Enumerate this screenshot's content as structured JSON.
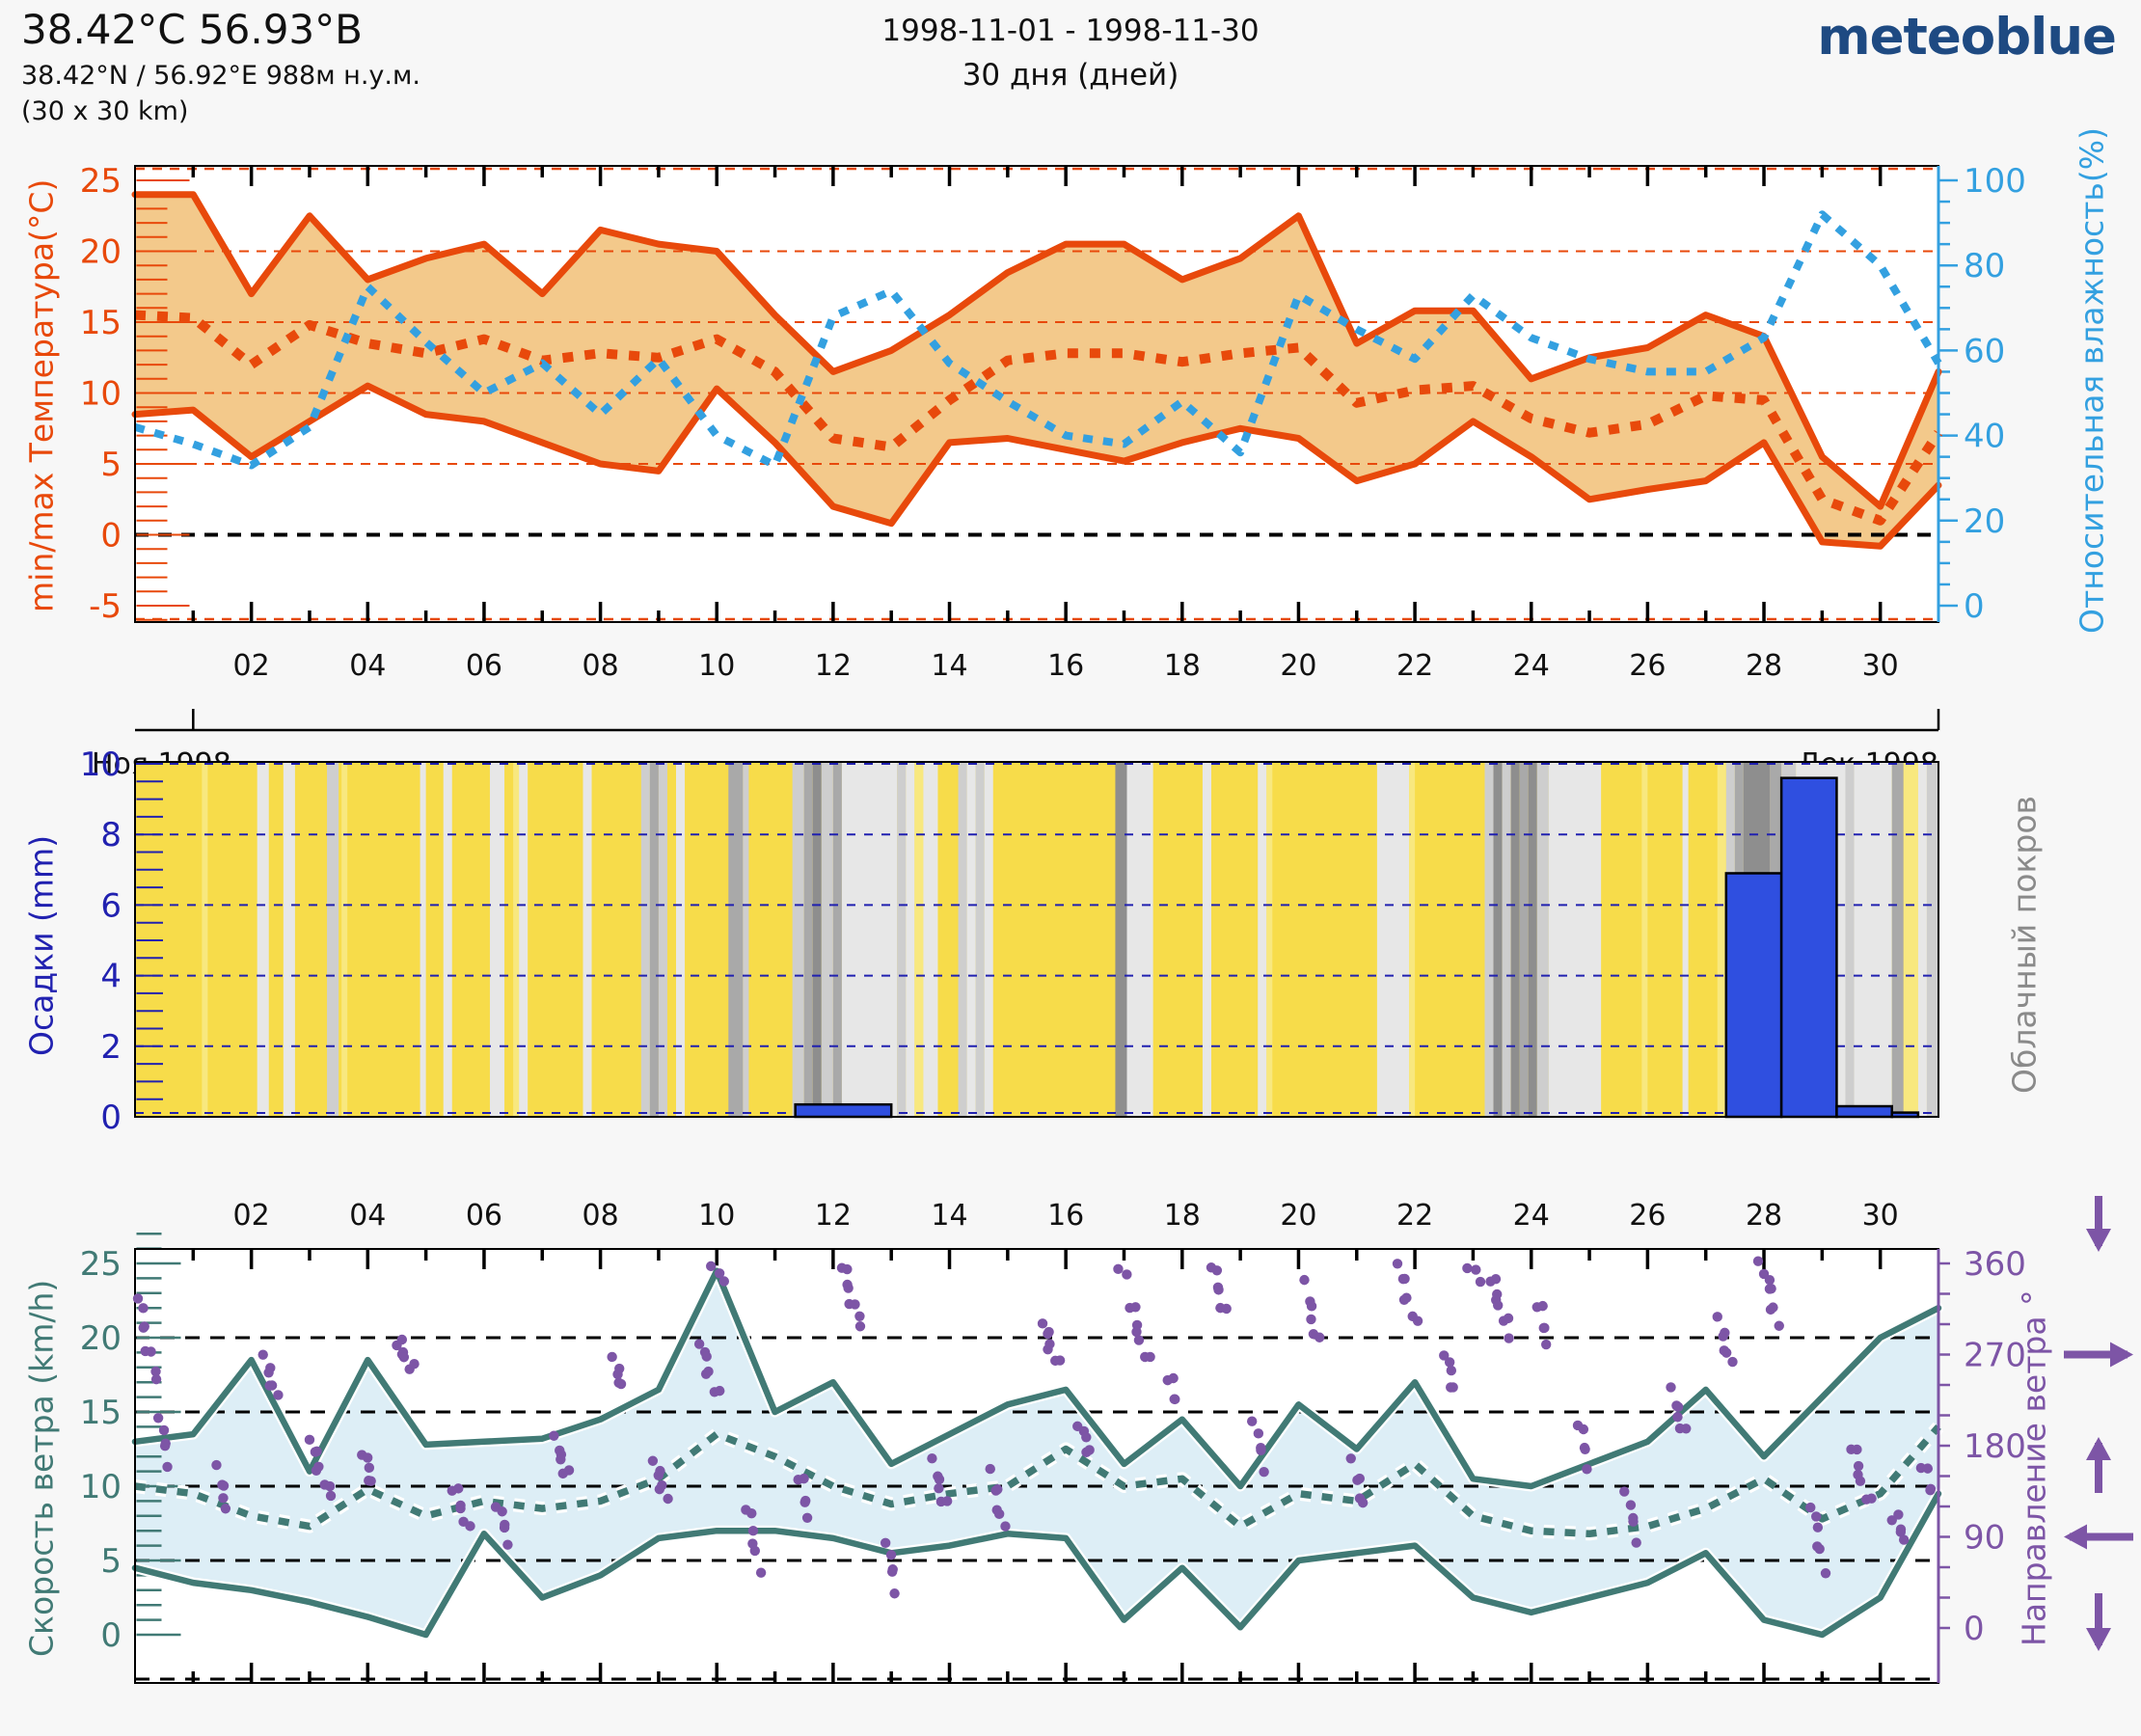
{
  "header": {
    "title": "38.42°C 56.93°B",
    "subtitle": "38.42°N / 56.92°E   988м н.у.м.",
    "area": "(30 x 30 km)",
    "period": "1998-11-01 - 1998-11-30",
    "duration": "30 дня (дней)",
    "logo": "meteoblue"
  },
  "colors": {
    "background": "#f7f7f7",
    "temperature_line": "#e8490b",
    "temperature_band": "#f3c98b",
    "humidity_line": "#33a0e0",
    "precip_bar": "#2f4fe0",
    "precip_axis": "#2121b0",
    "cloud_label": "#8a8a8a",
    "cloud_base_yellow": "#f7dc4a",
    "wind_line": "#417a75",
    "wind_band": "#ddeef6",
    "direction_purple": "#7d55a6",
    "logo_blue": "#1e4a82",
    "zero_line": "#000000"
  },
  "axes": {
    "temperature": {
      "label": "min/max Температура(°C)",
      "tick_labels": [
        "25",
        "20",
        "15",
        "10",
        "5",
        "0",
        "-5"
      ],
      "tick_values": [
        25,
        20,
        15,
        10,
        5,
        0,
        -5
      ]
    },
    "humidity": {
      "label": "Относительная влажность(%)",
      "tick_labels": [
        "100",
        "80",
        "60",
        "40",
        "20",
        "0"
      ],
      "tick_values": [
        100,
        80,
        60,
        40,
        20,
        0
      ]
    },
    "precipitation": {
      "label": "Осадки (mm)",
      "tick_labels": [
        "10",
        "8",
        "6",
        "4",
        "2",
        "0"
      ],
      "tick_values": [
        10,
        8,
        6,
        4,
        2,
        0
      ]
    },
    "cloud": {
      "label": "Облачный покров"
    },
    "wind": {
      "label": "Скорость ветра (km/h)",
      "tick_labels": [
        "25",
        "20",
        "15",
        "10",
        "5",
        "0"
      ],
      "tick_values": [
        25,
        20,
        15,
        10,
        5,
        0
      ]
    },
    "direction": {
      "label": "Направление ветра °",
      "tick_labels": [
        "360",
        "270",
        "180",
        "90",
        "0"
      ],
      "tick_values": [
        360,
        270,
        180,
        90,
        0
      ]
    },
    "days": {
      "tick_labels": [
        "02",
        "04",
        "06",
        "08",
        "10",
        "12",
        "14",
        "16",
        "18",
        "20",
        "22",
        "24",
        "26",
        "28",
        "30"
      ],
      "tick_values": [
        2,
        4,
        6,
        8,
        10,
        12,
        14,
        16,
        18,
        20,
        22,
        24,
        26,
        28,
        30
      ]
    },
    "months": {
      "left": "Ноя 1998",
      "right": "Дек 1998"
    }
  },
  "chart_data": [
    {
      "type": "area",
      "name": "temperature-humidity",
      "x_days": [
        0,
        1,
        2,
        3,
        4,
        5,
        6,
        7,
        8,
        9,
        10,
        11,
        12,
        13,
        14,
        15,
        16,
        17,
        18,
        19,
        20,
        21,
        22,
        23,
        24,
        25,
        26,
        27,
        28,
        29,
        30,
        31
      ],
      "series": [
        {
          "name": "temp_max",
          "values": [
            24,
            24,
            17,
            22.5,
            18,
            19.5,
            20.5,
            17,
            21.5,
            20.5,
            20,
            15.5,
            11.5,
            13,
            15.5,
            18.5,
            20.5,
            20.5,
            18,
            19.5,
            22.5,
            13.5,
            15.8,
            15.8,
            11,
            12.5,
            13.2,
            15.5,
            14,
            5.5,
            2,
            11.5
          ]
        },
        {
          "name": "temp_min",
          "values": [
            8.5,
            8.8,
            5.5,
            8,
            10.5,
            8.5,
            8,
            6.5,
            5,
            4.5,
            10.3,
            6.5,
            2,
            0.8,
            6.5,
            6.8,
            6,
            5.2,
            6.5,
            7.5,
            6.8,
            3.8,
            5,
            8,
            5.5,
            2.5,
            3.2,
            3.8,
            6.5,
            -0.5,
            -0.8,
            3.5
          ]
        },
        {
          "name": "temp_mean",
          "values": [
            15.5,
            15.3,
            12,
            14.8,
            13.5,
            12.8,
            13.8,
            12.3,
            12.8,
            12.5,
            13.8,
            11.5,
            6.8,
            6.2,
            9.5,
            12.3,
            12.8,
            12.8,
            12.2,
            12.8,
            13.2,
            9.3,
            10.2,
            10.5,
            8.2,
            7.2,
            7.8,
            9.8,
            9.5,
            2.5,
            1,
            7.2
          ]
        },
        {
          "name": "humidity_pct",
          "values": [
            42,
            38,
            33,
            42,
            75,
            62,
            50,
            57,
            45,
            58,
            40,
            33,
            68,
            74,
            57,
            48,
            40,
            38,
            48,
            36,
            73,
            65,
            58,
            73,
            63,
            58,
            55,
            55,
            63,
            92,
            80,
            57
          ]
        }
      ],
      "ylim_temp": [
        -5,
        25
      ],
      "ylim_humidity": [
        0,
        100
      ],
      "temp_gridlines": [
        20,
        15,
        10,
        5
      ],
      "zero_line": 0
    },
    {
      "type": "bar",
      "name": "precipitation-cloudcover",
      "ylim_mm": [
        0,
        10
      ],
      "bars_day_start_end_mm": [
        [
          11.35,
          13.0,
          0.35
        ],
        [
          27.35,
          28.3,
          6.9
        ],
        [
          28.3,
          29.25,
          9.6
        ],
        [
          29.25,
          30.2,
          0.3
        ],
        [
          30.2,
          30.65,
          0.12
        ]
      ],
      "cloud_stripes_day_start_end_color": [
        [
          1.15,
          1.25,
          "#f8e87f"
        ],
        [
          2.1,
          2.3,
          "#e7e7e7"
        ],
        [
          2.55,
          2.75,
          "#e7e7e7"
        ],
        [
          3.3,
          3.5,
          "#cecece"
        ],
        [
          3.55,
          3.65,
          "#f8e87f"
        ],
        [
          4.9,
          5.0,
          "#e7e7e7"
        ],
        [
          5.3,
          5.45,
          "#e7e7e7"
        ],
        [
          6.1,
          6.35,
          "#e7e7e7"
        ],
        [
          6.5,
          6.6,
          "#f8e87f"
        ],
        [
          6.6,
          6.75,
          "#e7e7e7"
        ],
        [
          7.7,
          7.85,
          "#e7e7e7"
        ],
        [
          8.7,
          8.85,
          "#cecece"
        ],
        [
          8.85,
          9.0,
          "#a9a9a9"
        ],
        [
          9.0,
          9.15,
          "#cecece"
        ],
        [
          9.3,
          9.45,
          "#e7e7e7"
        ],
        [
          10.2,
          10.45,
          "#a9a9a9"
        ],
        [
          10.45,
          10.55,
          "#cecece"
        ],
        [
          11.3,
          11.5,
          "#cecece"
        ],
        [
          11.5,
          11.65,
          "#a9a9a9"
        ],
        [
          11.65,
          11.8,
          "#8e8e8e"
        ],
        [
          11.8,
          12.0,
          "#cecece"
        ],
        [
          12.0,
          12.15,
          "#a9a9a9"
        ],
        [
          12.15,
          13.1,
          "#e7e7e7"
        ],
        [
          13.1,
          13.25,
          "#cecece"
        ],
        [
          13.25,
          13.4,
          "#e7e7e7"
        ],
        [
          13.4,
          13.55,
          "#f8e87f"
        ],
        [
          13.55,
          13.8,
          "#e7e7e7"
        ],
        [
          14.15,
          14.3,
          "#cecece"
        ],
        [
          14.3,
          14.45,
          "#e7e7e7"
        ],
        [
          14.45,
          14.6,
          "#cecece"
        ],
        [
          14.6,
          14.75,
          "#e7e7e7"
        ],
        [
          16.85,
          17.05,
          "#8e8e8e"
        ],
        [
          17.05,
          17.5,
          "#e7e7e7"
        ],
        [
          18.35,
          18.5,
          "#e7e7e7"
        ],
        [
          19.3,
          19.45,
          "#e7e7e7"
        ],
        [
          19.45,
          19.55,
          "#f8e87f"
        ],
        [
          21.35,
          21.9,
          "#e7e7e7"
        ],
        [
          21.9,
          22.0,
          "#f8e87f"
        ],
        [
          23.2,
          23.35,
          "#cecece"
        ],
        [
          23.35,
          23.5,
          "#8e8e8e"
        ],
        [
          23.5,
          23.65,
          "#cecece"
        ],
        [
          23.65,
          23.8,
          "#8e8e8e"
        ],
        [
          23.8,
          23.95,
          "#a9a9a9"
        ],
        [
          23.95,
          24.1,
          "#8e8e8e"
        ],
        [
          24.1,
          24.3,
          "#cecece"
        ],
        [
          24.3,
          25.2,
          "#e7e7e7"
        ],
        [
          25.9,
          26.0,
          "#f8e87f"
        ],
        [
          26.6,
          26.7,
          "#e7e7e7"
        ],
        [
          27.2,
          27.35,
          "#f8e87f"
        ],
        [
          27.35,
          27.5,
          "#cecece"
        ],
        [
          27.5,
          27.65,
          "#a9a9a9"
        ],
        [
          27.65,
          28.1,
          "#8e8e8e"
        ],
        [
          28.1,
          28.3,
          "#a9a9a9"
        ],
        [
          28.3,
          28.55,
          "#cecece"
        ],
        [
          28.55,
          29.4,
          "#e7e7e7"
        ],
        [
          29.4,
          29.55,
          "#cecece"
        ],
        [
          29.55,
          30.2,
          "#e7e7e7"
        ],
        [
          30.2,
          30.4,
          "#a9a9a9"
        ],
        [
          30.4,
          30.65,
          "#f8e87f"
        ],
        [
          30.65,
          30.8,
          "#e7e7e7"
        ],
        [
          30.8,
          31,
          "#cecece"
        ]
      ]
    },
    {
      "type": "line-scatter",
      "name": "wind-speed-direction",
      "x_days": [
        0,
        1,
        2,
        3,
        4,
        5,
        6,
        7,
        8,
        9,
        10,
        11,
        12,
        13,
        14,
        15,
        16,
        17,
        18,
        19,
        20,
        21,
        22,
        23,
        24,
        25,
        26,
        27,
        28,
        29,
        30,
        31
      ],
      "series": [
        {
          "name": "wind_max",
          "values": [
            13,
            13.5,
            18.5,
            11,
            18.5,
            12.8,
            13,
            13.2,
            14.5,
            16.5,
            24.5,
            15,
            17,
            11.5,
            13.5,
            15.5,
            16.5,
            11.5,
            14.5,
            10,
            15.5,
            12.5,
            17,
            10.5,
            10,
            11.5,
            13,
            16.5,
            12,
            16,
            20,
            22
          ]
        },
        {
          "name": "wind_mean",
          "values": [
            10,
            9.5,
            8,
            7.3,
            9.8,
            8,
            9,
            8.5,
            9,
            10.5,
            13.5,
            12,
            10,
            8.8,
            9.5,
            10,
            12.5,
            10,
            10.5,
            7.3,
            9.5,
            9,
            11.5,
            8,
            7,
            6.8,
            7.3,
            8.5,
            10.5,
            7.8,
            9.5,
            14
          ]
        },
        {
          "name": "wind_min",
          "values": [
            4.5,
            3.5,
            3,
            2.2,
            1.2,
            0,
            6.8,
            2.5,
            4,
            6.5,
            7,
            7,
            6.5,
            5.5,
            6,
            6.8,
            6.5,
            1,
            4.5,
            0.5,
            5,
            5.5,
            6,
            2.5,
            1.5,
            2.5,
            3.5,
            5.5,
            1,
            0,
            2.5,
            9.5
          ]
        }
      ],
      "ylim_speed": [
        0,
        25
      ],
      "ylim_direction": [
        0,
        360
      ],
      "speed_gridlines": [
        20,
        15,
        10,
        5,
        0
      ],
      "direction_runs_day0_day1_deg0_deg1_n": [
        [
          0.05,
          0.35,
          325,
          245,
          8
        ],
        [
          0.4,
          0.6,
          205,
          165,
          5
        ],
        [
          1.4,
          1.6,
          155,
          120,
          5
        ],
        [
          2.2,
          2.45,
          265,
          230,
          6
        ],
        [
          3.0,
          3.35,
          185,
          130,
          8
        ],
        [
          3.9,
          4.1,
          175,
          140,
          5
        ],
        [
          4.5,
          4.75,
          285,
          255,
          7
        ],
        [
          5.45,
          5.75,
          140,
          100,
          6
        ],
        [
          6.2,
          6.45,
          120,
          88,
          5
        ],
        [
          7.2,
          7.45,
          185,
          150,
          6
        ],
        [
          8.2,
          8.4,
          262,
          240,
          5
        ],
        [
          8.9,
          9.15,
          162,
          130,
          6
        ],
        [
          9.7,
          10.0,
          282,
          230,
          7
        ],
        [
          9.9,
          10.1,
          360,
          340,
          3
        ],
        [
          10.5,
          10.75,
          122,
          60,
          6
        ],
        [
          11.4,
          11.6,
          152,
          110,
          5
        ],
        [
          12.15,
          12.45,
          358,
          300,
          8
        ],
        [
          12.9,
          13.1,
          82,
          40,
          5
        ],
        [
          13.7,
          13.95,
          162,
          120,
          6
        ],
        [
          14.7,
          14.95,
          152,
          100,
          6
        ],
        [
          15.6,
          15.85,
          300,
          262,
          7
        ],
        [
          16.2,
          16.45,
          202,
          170,
          5
        ],
        [
          16.9,
          17.0,
          360,
          345,
          2
        ],
        [
          17.1,
          17.4,
          322,
          262,
          7
        ],
        [
          17.75,
          17.9,
          250,
          222,
          4
        ],
        [
          18.5,
          18.75,
          358,
          312,
          6
        ],
        [
          19.2,
          19.45,
          202,
          160,
          5
        ],
        [
          20.1,
          20.35,
          338,
          282,
          6
        ],
        [
          20.9,
          21.15,
          162,
          122,
          5
        ],
        [
          21.7,
          22.0,
          358,
          302,
          7
        ],
        [
          22.5,
          22.7,
          272,
          232,
          5
        ],
        [
          22.9,
          23.1,
          360,
          342,
          3
        ],
        [
          23.3,
          23.6,
          348,
          292,
          8
        ],
        [
          24.1,
          24.3,
          322,
          282,
          5
        ],
        [
          24.8,
          25.0,
          202,
          162,
          5
        ],
        [
          25.6,
          25.85,
          132,
          90,
          5
        ],
        [
          26.4,
          26.65,
          232,
          192,
          6
        ],
        [
          27.2,
          27.45,
          302,
          262,
          6
        ],
        [
          27.9,
          28.05,
          360,
          348,
          2
        ],
        [
          28.0,
          28.25,
          348,
          302,
          6
        ],
        [
          28.8,
          29.05,
          122,
          60,
          6
        ],
        [
          29.5,
          29.8,
          182,
          122,
          7
        ],
        [
          30.2,
          30.45,
          112,
          88,
          5
        ],
        [
          30.7,
          30.9,
          162,
          132,
          4
        ]
      ],
      "direction_arrow_glyphs": [
        "down-arrow",
        "right-arrow",
        "up-arrow",
        "left-arrow",
        "down-arrow"
      ]
    }
  ]
}
